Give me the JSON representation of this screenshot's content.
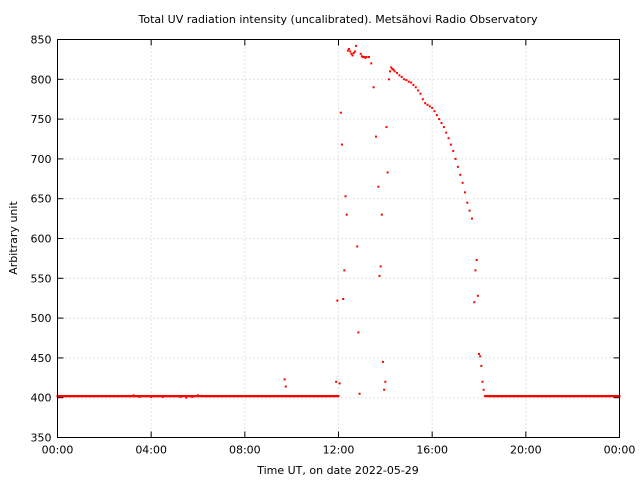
{
  "chart_data": {
    "type": "scatter",
    "title": "Total UV radiation intensity (uncalibrated). Metsähovi Radio Observatory",
    "xlabel": "Time UT, on date 2022-05-29",
    "ylabel": "Arbitrary unit",
    "xlim_hours": [
      0,
      24
    ],
    "ylim": [
      350,
      850
    ],
    "x_ticks": [
      {
        "hour": 0,
        "label": "00:00"
      },
      {
        "hour": 4,
        "label": "04:00"
      },
      {
        "hour": 8,
        "label": "08:00"
      },
      {
        "hour": 12,
        "label": "12:00"
      },
      {
        "hour": 16,
        "label": "16:00"
      },
      {
        "hour": 20,
        "label": "20:00"
      },
      {
        "hour": 24,
        "label": "00:00"
      }
    ],
    "y_ticks": [
      350,
      400,
      450,
      500,
      550,
      600,
      650,
      700,
      750,
      800,
      850
    ],
    "grid": true,
    "marker_color": "#ff0000",
    "series": [
      {
        "x_hours": [
          0.0,
          0.5,
          1.0,
          1.5,
          2.0,
          2.5,
          3.0,
          3.25,
          3.5,
          3.75,
          4.0,
          4.25,
          4.5,
          4.75,
          5.0,
          5.25,
          5.5,
          5.75,
          6.0,
          6.25,
          6.5,
          7.0,
          7.5,
          8.0,
          8.5,
          9.0,
          9.5,
          9.7,
          9.75,
          10.0,
          10.5,
          11.0,
          11.5,
          11.9,
          11.95,
          12.0,
          12.05,
          12.1,
          12.15,
          12.2,
          12.25,
          12.3,
          12.35,
          12.4,
          12.45,
          12.5,
          12.55,
          12.6,
          12.65,
          12.7,
          12.75,
          12.8,
          12.85,
          12.9,
          12.95,
          13.0,
          13.05,
          13.1,
          13.15,
          13.2,
          13.3,
          13.4,
          13.5,
          13.6,
          13.7,
          13.75,
          13.8,
          13.85,
          13.9,
          13.95,
          14.0,
          14.05,
          14.1,
          14.15,
          14.2,
          14.25,
          14.3,
          14.35,
          14.4,
          14.5,
          14.6,
          14.7,
          14.8,
          14.9,
          15.0,
          15.1,
          15.2,
          15.3,
          15.4,
          15.5,
          15.6,
          15.7,
          15.8,
          15.9,
          16.0,
          16.1,
          16.2,
          16.3,
          16.4,
          16.5,
          16.6,
          16.7,
          16.8,
          16.9,
          17.0,
          17.1,
          17.2,
          17.3,
          17.4,
          17.5,
          17.6,
          17.7,
          17.8,
          17.85,
          17.9,
          17.95,
          18.0,
          18.05,
          18.1,
          18.15,
          18.2,
          18.25,
          18.3,
          18.35,
          18.4,
          18.5,
          19.0,
          19.5,
          20.0,
          20.5,
          21.0,
          21.5,
          22.0,
          22.5,
          23.0,
          23.5,
          24.0
        ],
        "values": [
          402,
          402,
          402,
          402,
          402,
          402,
          402,
          403,
          401,
          402,
          401,
          402,
          401,
          402,
          402,
          401,
          400,
          401,
          403,
          402,
          402,
          402,
          402,
          402,
          402,
          402,
          402,
          423,
          414,
          402,
          402,
          402,
          402,
          420,
          522,
          402,
          418,
          758,
          718,
          524,
          560,
          653,
          630,
          836,
          838,
          835,
          832,
          830,
          833,
          835,
          842,
          590,
          482,
          405,
          832,
          829,
          828,
          828,
          827,
          828,
          828,
          820,
          790,
          728,
          665,
          553,
          565,
          630,
          445,
          410,
          420,
          740,
          683,
          800,
          810,
          815,
          813,
          812,
          810,
          808,
          805,
          803,
          800,
          799,
          797,
          796,
          793,
          790,
          786,
          782,
          775,
          770,
          768,
          766,
          764,
          760,
          755,
          750,
          745,
          740,
          733,
          726,
          718,
          710,
          700,
          690,
          680,
          670,
          658,
          645,
          635,
          625,
          520,
          560,
          573,
          528,
          455,
          452,
          440,
          420,
          410,
          402,
          402,
          402,
          402,
          402,
          402,
          402,
          402,
          402,
          402,
          402,
          402,
          402,
          402,
          402,
          402
        ]
      }
    ]
  }
}
